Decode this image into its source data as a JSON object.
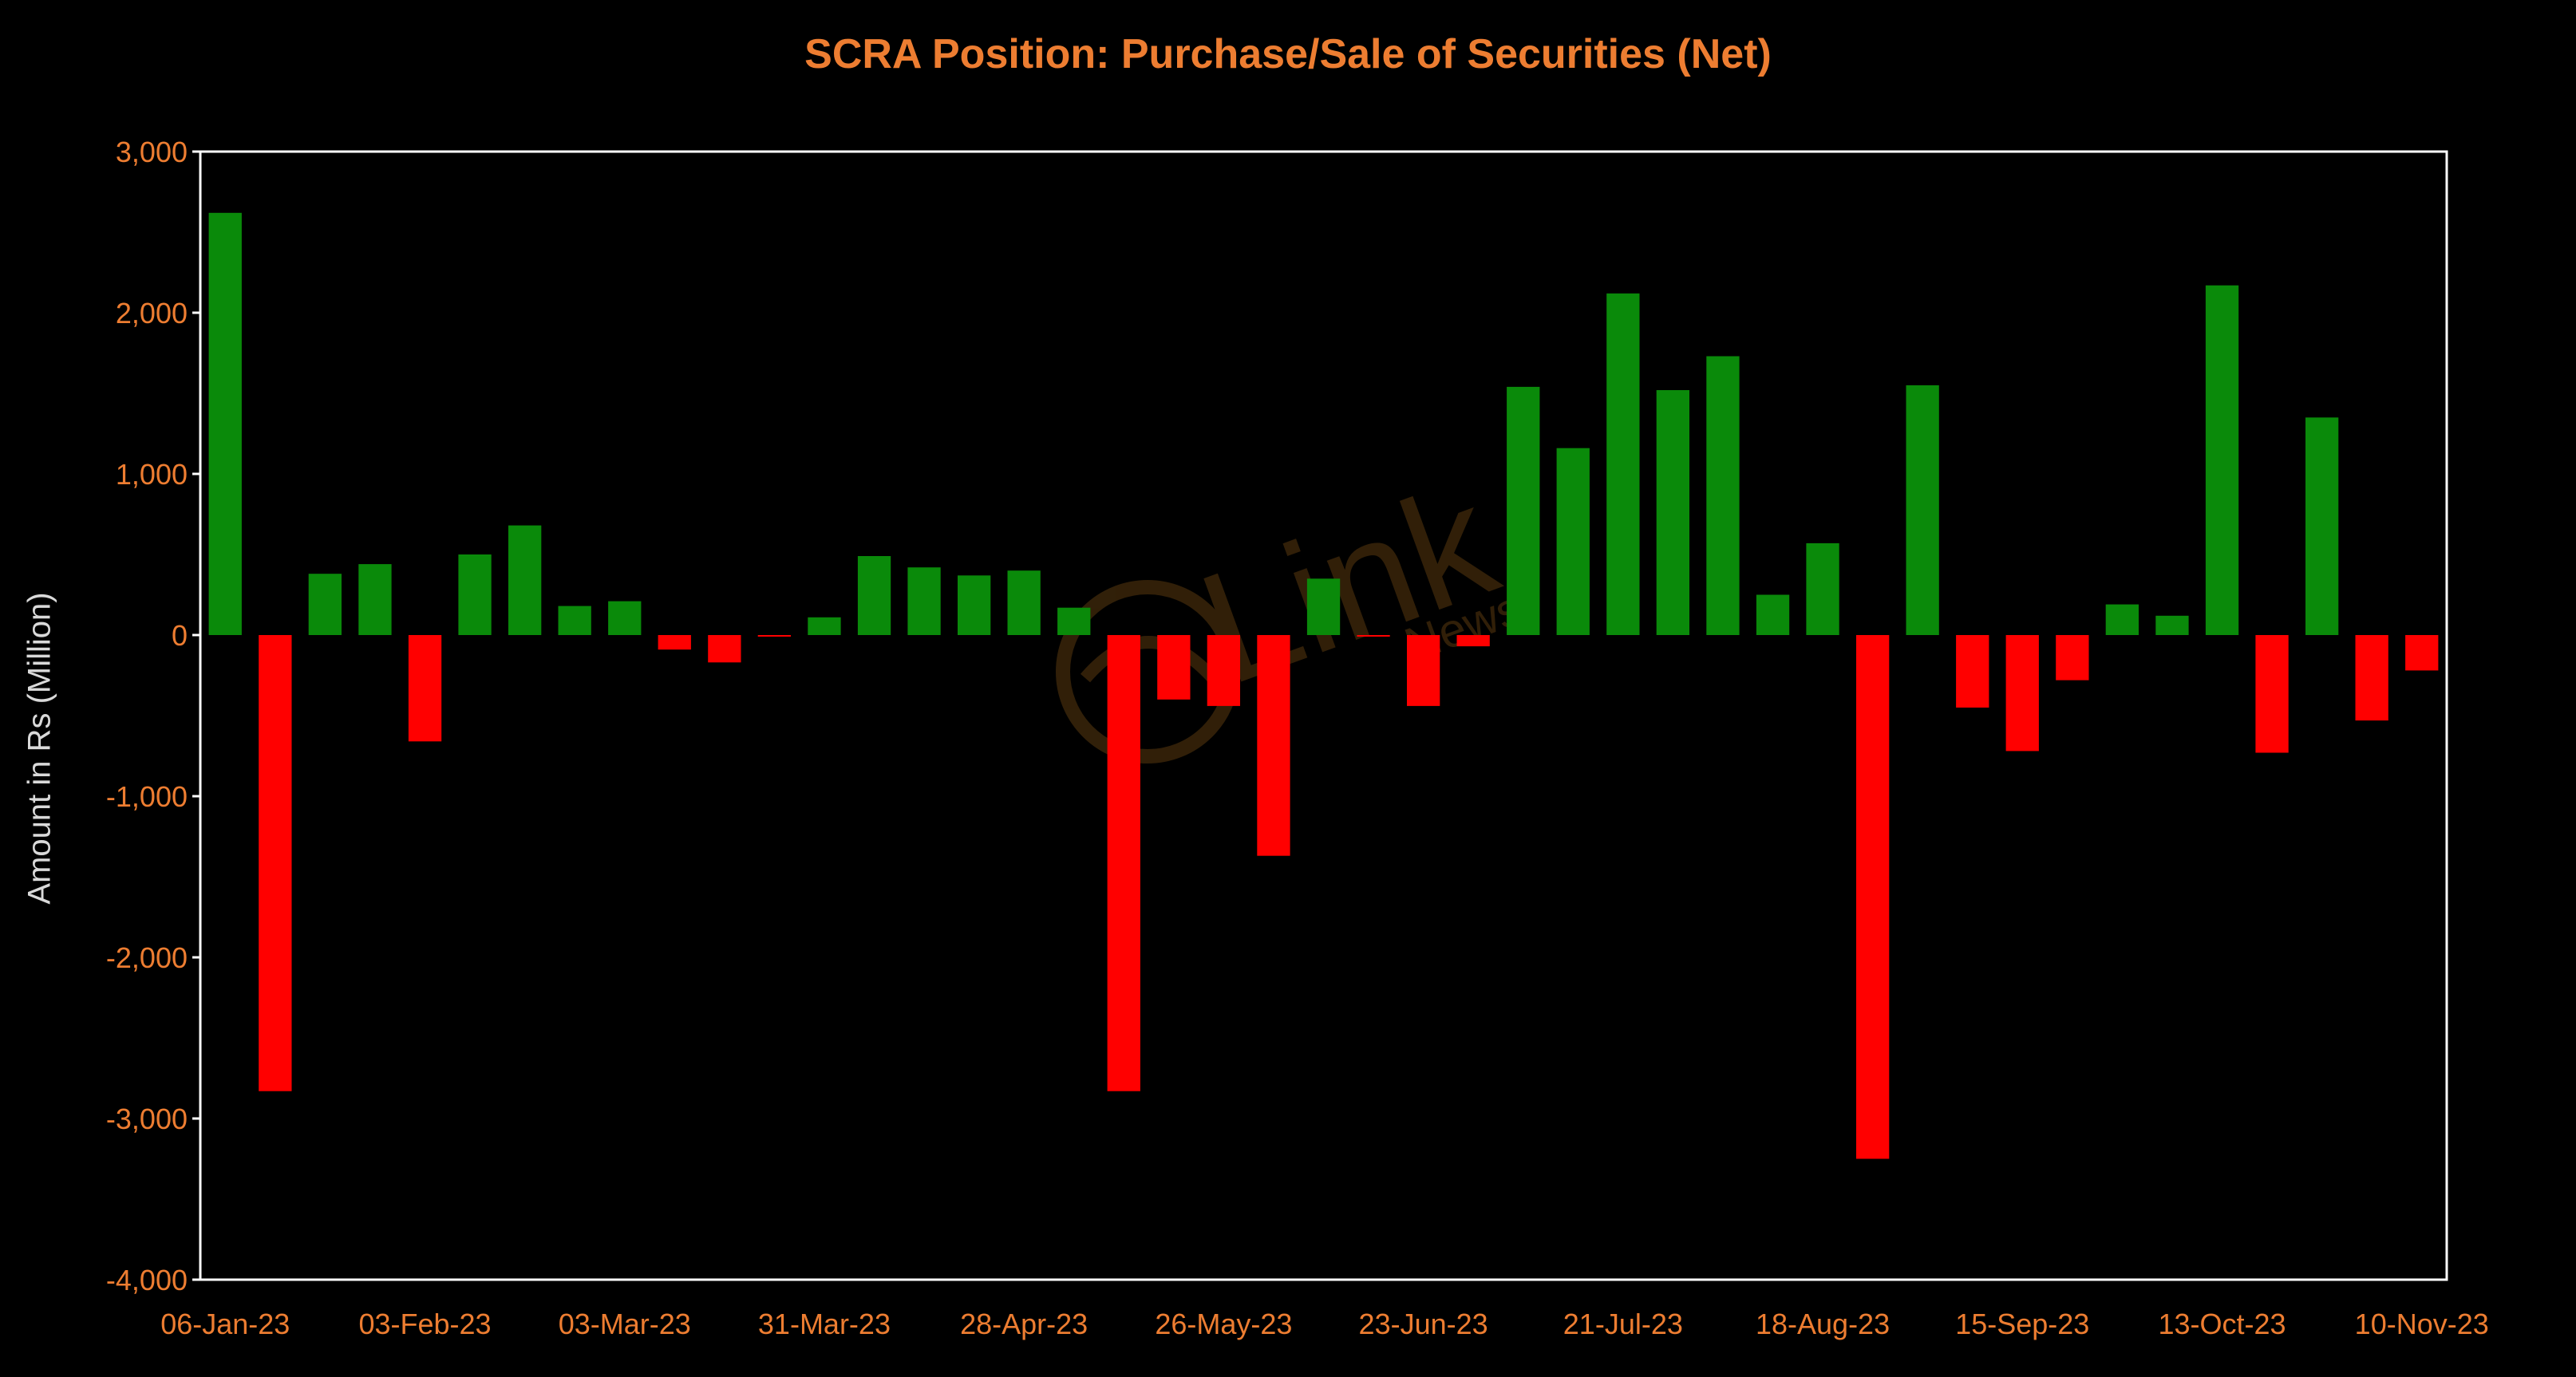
{
  "chart_data": {
    "type": "bar",
    "title": "SCRA Position: Purchase/Sale of Securities (Net)",
    "xlabel": "",
    "ylabel": "Amount in Rs (Million)",
    "ylim": [
      -4000,
      3000
    ],
    "yticks": [
      3000,
      2000,
      1000,
      0,
      -1000,
      -2000,
      -3000,
      -4000
    ],
    "ytick_labels": [
      "3,000",
      "2,000",
      "1,000",
      "0",
      "-1,000",
      "-2,000",
      "-3,000",
      "-4,000"
    ],
    "xtick_labels": [
      "06-Jan-23",
      "03-Feb-23",
      "03-Mar-23",
      "31-Mar-23",
      "28-Apr-23",
      "26-May-23",
      "23-Jun-23",
      "21-Jul-23",
      "18-Aug-23",
      "15-Sep-23",
      "13-Oct-23",
      "10-Nov-23"
    ],
    "xtick_index": [
      0,
      4,
      8,
      12,
      16,
      20,
      24,
      28,
      32,
      36,
      40,
      44
    ],
    "values": [
      2620,
      -2830,
      380,
      440,
      -660,
      500,
      680,
      180,
      210,
      -90,
      -170,
      -10,
      110,
      490,
      420,
      370,
      400,
      170,
      -2830,
      -400,
      -440,
      -1370,
      350,
      -10,
      -440,
      -70,
      1540,
      1160,
      2120,
      1520,
      1730,
      250,
      570,
      -3250,
      1550,
      -450,
      -720,
      -280,
      190,
      120,
      2170,
      -730,
      1350,
      -530,
      -220
    ],
    "positive_color": "#0A8A0A",
    "negative_color": "#FF0000",
    "grid": false,
    "legend": "none"
  },
  "watermark": {
    "brand": "Link",
    "sub": "News"
  },
  "colors": {
    "background": "#000000",
    "title": "#ED7D31",
    "tick_text": "#ED7D31",
    "axis_label": "#D9D9D9",
    "frame": "#FFFFFF"
  }
}
